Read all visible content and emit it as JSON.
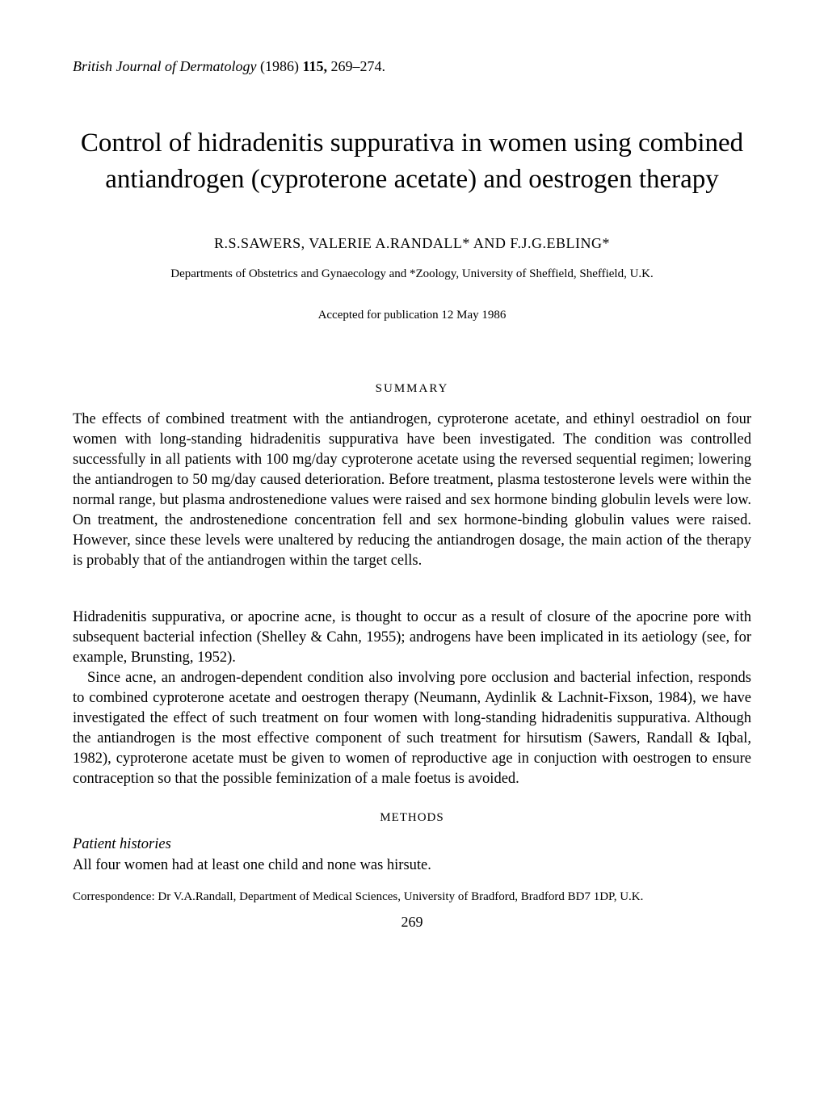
{
  "journal_ref": {
    "journal_name": "British Journal of Dermatology",
    "year": "(1986)",
    "volume": "115,",
    "pages": "269–274."
  },
  "title": "Control of hidradenitis suppurativa in women using combined antiandrogen (cyproterone acetate) and oestrogen therapy",
  "authors": "R.S.SAWERS, VALERIE A.RANDALL* AND F.J.G.EBLING*",
  "affiliations": "Departments of Obstetrics and Gynaecology and *Zoology, University of Sheffield, Sheffield, U.K.",
  "accepted": "Accepted for publication 12 May 1986",
  "summary_heading": "SUMMARY",
  "summary_text": "The effects of combined treatment with the antiandrogen, cyproterone acetate, and ethinyl oestradiol on four women with long-standing hidradenitis suppurativa have been investigated. The condition was controlled successfully in all patients with 100 mg/day cyproterone acetate using the reversed sequential regimen; lowering the antiandrogen to 50 mg/day caused deterioration. Before treatment, plasma testosterone levels were within the normal range, but plasma androstenedione values were raised and sex hormone binding globulin levels were low. On treatment, the androstenedione concentration fell and sex hormone-binding globulin values were raised. However, since these levels were unaltered by reducing the antiandrogen dosage, the main action of the therapy is probably that of the antiandrogen within the target cells.",
  "body_para1": "Hidradenitis suppurativa, or apocrine acne, is thought to occur as a result of closure of the apocrine pore with subsequent bacterial infection (Shelley & Cahn, 1955); androgens have been implicated in its aetiology (see, for example, Brunsting, 1952).",
  "body_para2": "Since acne, an androgen-dependent condition also involving pore occlusion and bacterial infection, responds to combined cyproterone acetate and oestrogen therapy (Neumann, Aydinlik & Lachnit-Fixson, 1984), we have investigated the effect of such treatment on four women with long-standing hidradenitis suppurativa. Although the antiandrogen is the most effective component of such treatment for hirsutism (Sawers, Randall & Iqbal, 1982), cyproterone acetate must be given to women of reproductive age in conjuction with oestrogen to ensure contraception so that the possible feminization of a male foetus is avoided.",
  "methods_heading": "METHODS",
  "subsection": "Patient histories",
  "patient_text": "All four women had at least one child and none was hirsute.",
  "correspondence": "Correspondence: Dr V.A.Randall, Department of Medical Sciences, University of Bradford, Bradford BD7 1DP, U.K.",
  "page_number": "269",
  "colors": {
    "text": "#000000",
    "background": "#ffffff"
  },
  "typography": {
    "body_font": "Times New Roman, serif",
    "title_fontsize": 33,
    "body_fontsize": 18.5,
    "small_fontsize": 15
  }
}
